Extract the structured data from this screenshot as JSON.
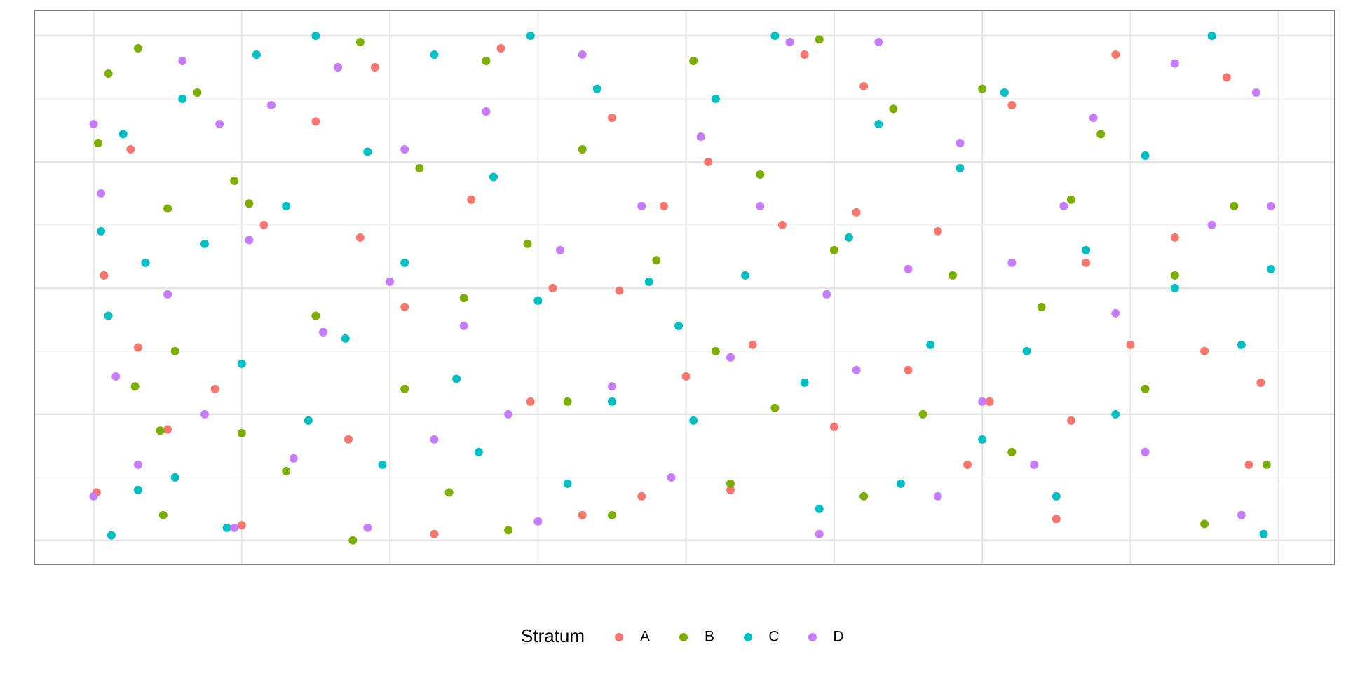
{
  "chart_data": {
    "type": "scatter",
    "legend_title": "Stratum",
    "legend_position": "bottom",
    "grid": true,
    "xlim": [
      -0.4,
      8.38
    ],
    "ylim": [
      -0.19,
      4.2
    ],
    "xticks": [
      0,
      1,
      2,
      3,
      4,
      5,
      6,
      7,
      8
    ],
    "yticks": [
      0,
      0.5,
      1,
      1.5,
      2,
      2.5,
      3,
      3.5,
      4
    ],
    "series": [
      {
        "name": "A",
        "color": "#F8766D",
        "x": [
          0.02,
          0.07,
          0.25,
          0.3,
          0.5,
          0.82,
          1.0,
          1.15,
          1.5,
          1.72,
          1.8,
          1.9,
          2.1,
          2.3,
          2.55,
          2.75,
          2.95,
          3.1,
          3.3,
          3.5,
          3.55,
          3.7,
          3.85,
          4.0,
          4.15,
          4.3,
          4.45,
          4.65,
          4.8,
          5.0,
          5.15,
          5.2,
          5.5,
          5.7,
          5.9,
          6.05,
          6.2,
          6.5,
          6.6,
          6.7,
          6.9,
          7.0,
          7.1,
          7.3,
          7.5,
          7.65,
          7.8,
          7.88
        ],
        "values": [
          0.38,
          2.1,
          3.1,
          1.53,
          0.88,
          1.2,
          0.12,
          2.5,
          3.32,
          0.8,
          2.4,
          3.75,
          1.85,
          0.05,
          2.7,
          3.9,
          1.1,
          2.0,
          0.2,
          3.35,
          1.98,
          0.35,
          2.65,
          1.3,
          3.0,
          0.4,
          1.55,
          2.5,
          3.85,
          0.9,
          2.6,
          3.6,
          1.35,
          2.45,
          0.6,
          1.1,
          3.45,
          0.17,
          0.95,
          2.2,
          3.85,
          1.55,
          0.7,
          2.4,
          1.5,
          3.67,
          0.6,
          1.25
        ]
      },
      {
        "name": "B",
        "color": "#7CAE00",
        "x": [
          0.03,
          0.1,
          0.28,
          0.3,
          0.45,
          0.5,
          0.47,
          0.55,
          0.7,
          0.95,
          1.0,
          1.05,
          1.3,
          1.5,
          1.75,
          1.8,
          2.1,
          2.2,
          2.4,
          2.5,
          2.65,
          2.8,
          2.93,
          3.2,
          3.3,
          3.5,
          3.8,
          4.05,
          4.2,
          4.3,
          4.5,
          4.6,
          4.9,
          5.0,
          5.2,
          5.4,
          5.6,
          5.8,
          6.0,
          6.2,
          6.4,
          6.6,
          6.8,
          7.1,
          7.3,
          7.5,
          7.7,
          7.92
        ],
        "values": [
          3.15,
          3.7,
          1.22,
          3.9,
          0.87,
          2.63,
          0.2,
          1.5,
          3.55,
          2.85,
          0.85,
          2.67,
          0.55,
          1.78,
          0.0,
          3.95,
          1.2,
          2.95,
          0.38,
          1.92,
          3.8,
          0.08,
          2.35,
          1.1,
          3.1,
          0.2,
          2.22,
          3.8,
          1.5,
          0.45,
          2.9,
          1.05,
          3.97,
          2.3,
          0.35,
          3.42,
          1.0,
          2.1,
          3.58,
          0.7,
          1.85,
          2.7,
          3.22,
          1.2,
          2.1,
          0.13,
          2.65,
          0.6
        ]
      },
      {
        "name": "C",
        "color": "#00BFC4",
        "x": [
          0.05,
          0.1,
          0.12,
          0.2,
          0.3,
          0.35,
          0.55,
          0.6,
          0.75,
          0.9,
          1.0,
          1.1,
          1.3,
          1.45,
          1.5,
          1.7,
          1.85,
          1.95,
          2.1,
          2.3,
          2.45,
          2.6,
          2.7,
          2.95,
          3.0,
          3.2,
          3.4,
          3.5,
          3.75,
          3.95,
          4.05,
          4.2,
          4.4,
          4.6,
          4.8,
          4.9,
          5.1,
          5.3,
          5.45,
          5.65,
          5.85,
          6.0,
          6.15,
          6.3,
          6.5,
          6.7,
          6.9,
          7.1,
          7.3,
          7.55,
          7.75,
          7.95,
          7.9
        ],
        "values": [
          2.45,
          1.78,
          0.04,
          3.22,
          0.4,
          2.2,
          0.5,
          3.5,
          2.35,
          0.1,
          1.4,
          3.85,
          2.65,
          0.95,
          4.0,
          1.6,
          3.08,
          0.6,
          2.2,
          3.85,
          1.28,
          0.7,
          2.88,
          4.0,
          1.9,
          0.45,
          3.58,
          1.1,
          2.05,
          1.7,
          0.95,
          3.5,
          2.1,
          4.0,
          1.25,
          0.25,
          2.4,
          3.3,
          0.45,
          1.55,
          2.95,
          0.8,
          3.55,
          1.5,
          0.35,
          2.3,
          1.0,
          3.05,
          2.0,
          4.0,
          1.55,
          2.15,
          0.05
        ]
      },
      {
        "name": "D",
        "color": "#C77CFF",
        "x": [
          0.0,
          0.0,
          0.05,
          0.15,
          0.3,
          0.5,
          0.6,
          0.75,
          0.85,
          0.95,
          1.05,
          1.2,
          1.35,
          1.55,
          1.65,
          1.85,
          2.0,
          2.1,
          2.3,
          2.5,
          2.65,
          2.8,
          3.0,
          3.15,
          3.3,
          3.5,
          3.7,
          3.9,
          4.1,
          4.3,
          4.5,
          4.7,
          4.9,
          4.95,
          5.15,
          5.3,
          5.5,
          5.7,
          5.85,
          6.0,
          6.2,
          6.35,
          6.55,
          6.75,
          6.9,
          7.1,
          7.3,
          7.55,
          7.75,
          7.85,
          7.95
        ],
        "values": [
          3.3,
          0.35,
          2.75,
          1.3,
          0.6,
          1.95,
          3.8,
          1.0,
          3.3,
          0.1,
          2.38,
          3.45,
          0.65,
          1.65,
          3.75,
          0.1,
          2.05,
          3.1,
          0.8,
          1.7,
          3.4,
          1.0,
          0.15,
          2.3,
          3.85,
          1.22,
          2.65,
          0.5,
          3.2,
          1.45,
          2.65,
          3.95,
          0.05,
          1.95,
          1.35,
          3.95,
          2.15,
          0.35,
          3.15,
          1.1,
          2.2,
          0.6,
          2.65,
          3.35,
          1.8,
          0.7,
          3.78,
          2.5,
          0.2,
          3.55,
          2.65
        ]
      }
    ]
  }
}
